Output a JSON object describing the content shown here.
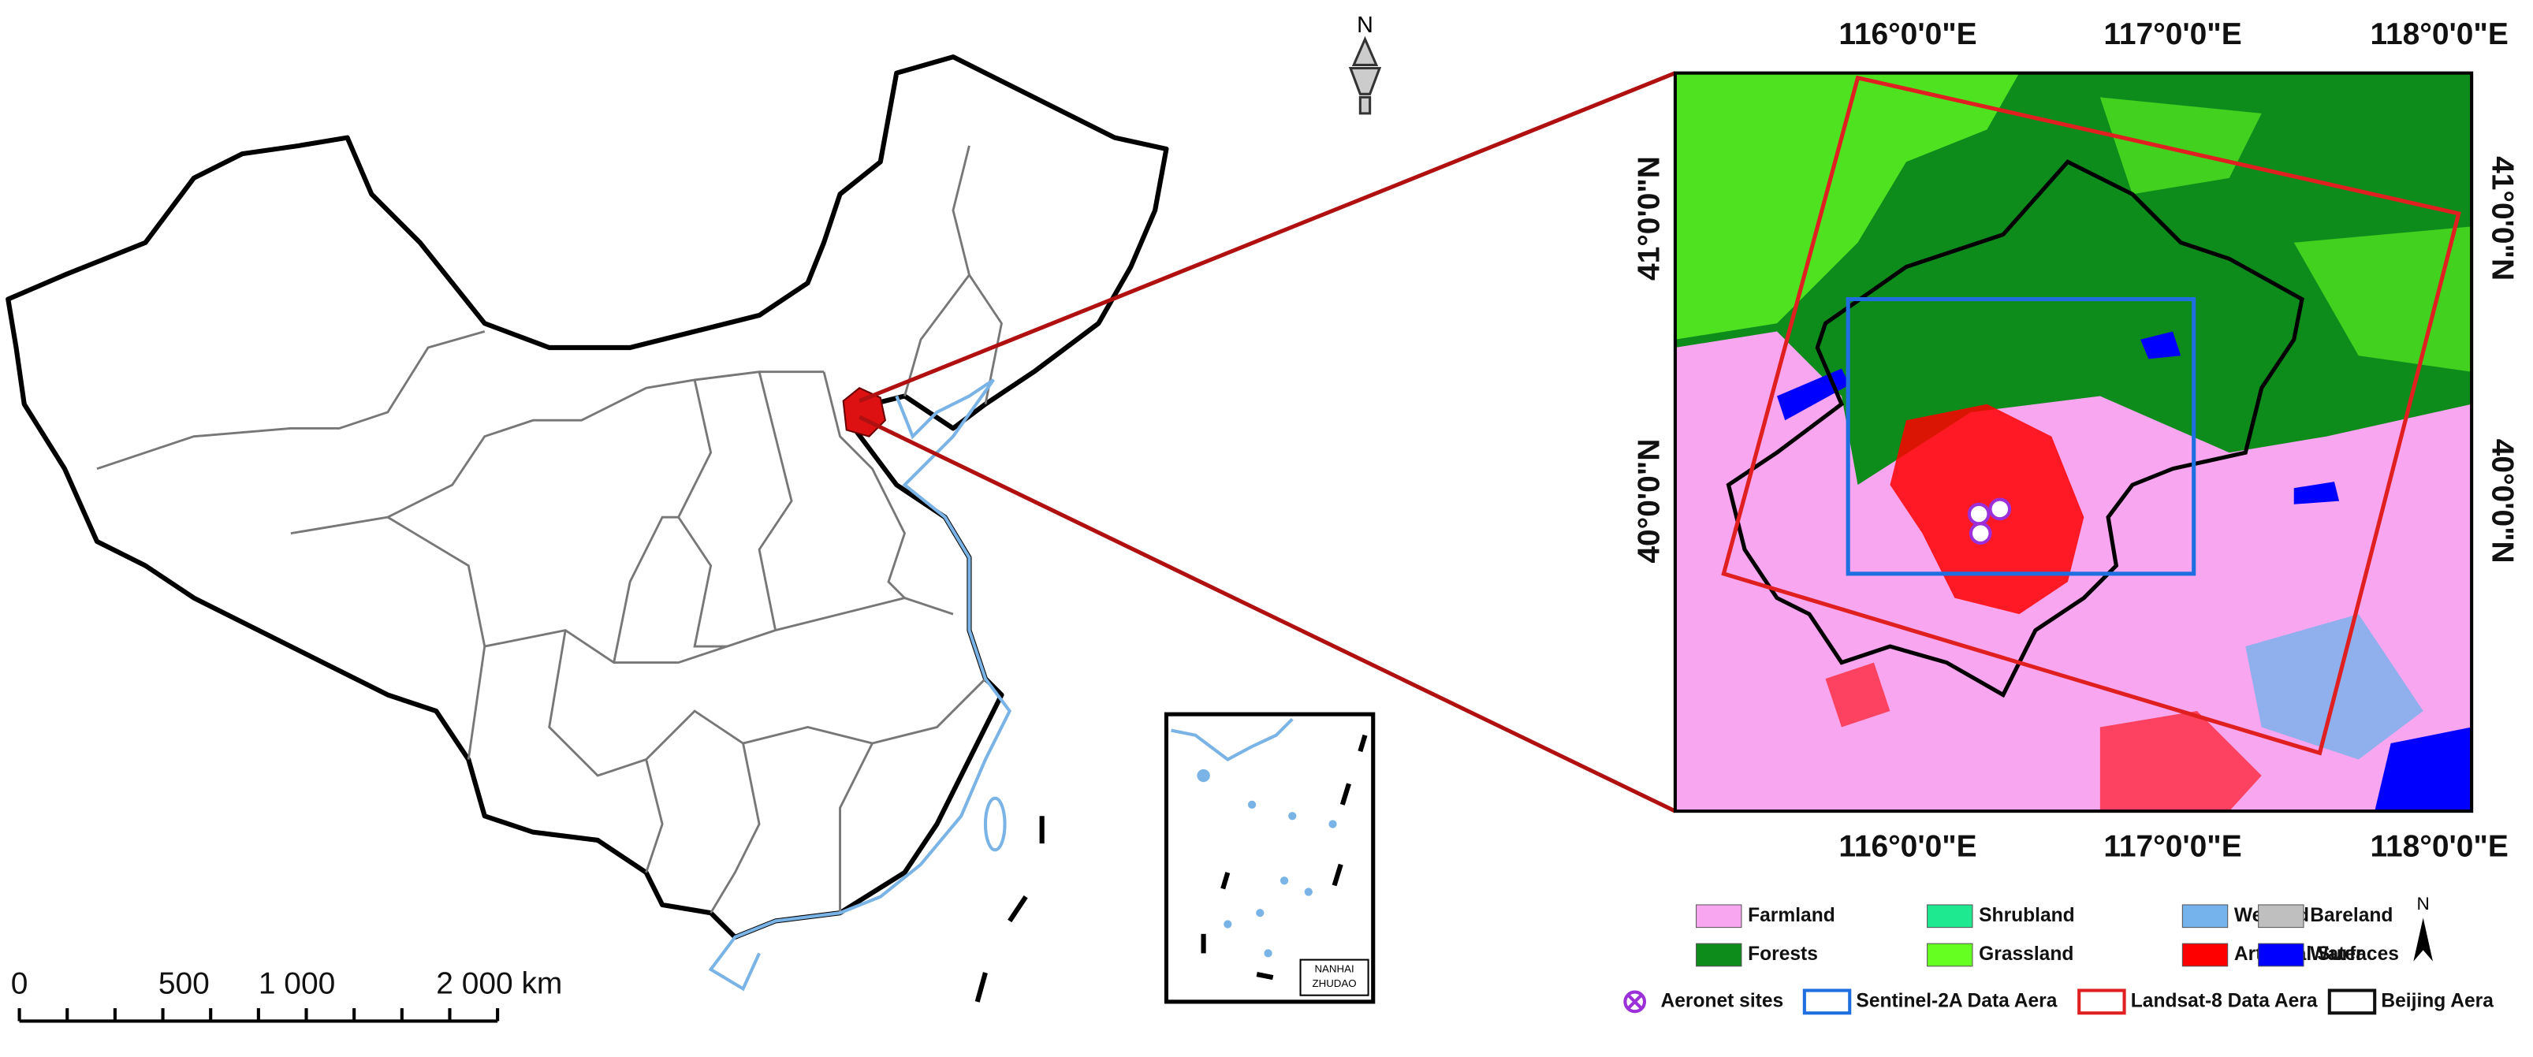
{
  "north_label": "N",
  "scale_bar": {
    "labels": [
      "0",
      "500",
      "1 000",
      "2 000 km"
    ]
  },
  "inset": {
    "label_line1": "NANHAI",
    "label_line2": "ZHUDAO"
  },
  "detail_map": {
    "lon_labels": [
      "116°0'0\"E",
      "117°0'0\"E",
      "118°0'0\"E"
    ],
    "lat_labels": [
      "41°0'0\"N",
      "40°0'0\"N"
    ]
  },
  "legend": {
    "land_cover": [
      {
        "name": "Farmland",
        "color": "#f7a6ef"
      },
      {
        "name": "Shrubland",
        "color": "#1ee890"
      },
      {
        "name": "Wetland",
        "color": "#74b3ec"
      },
      {
        "name": "Bareland",
        "color": "#bfbfbf"
      },
      {
        "name": "Forests",
        "color": "#0d8c1c"
      },
      {
        "name": "Grassland",
        "color": "#66ff22"
      },
      {
        "name": "Artificial Surfaces",
        "color": "#ff0000"
      },
      {
        "name": "Water",
        "color": "#0000ff"
      }
    ],
    "features": [
      {
        "name": "Aeronet sites",
        "color": "#9b30d9"
      },
      {
        "name": "Sentinel-2A Data Aera",
        "color": "#1f6fe0"
      },
      {
        "name": "Landsat-8 Data Aera",
        "color": "#e02020"
      },
      {
        "name": "Beijing Aera",
        "color": "#111111"
      }
    ],
    "north_label": "N"
  }
}
